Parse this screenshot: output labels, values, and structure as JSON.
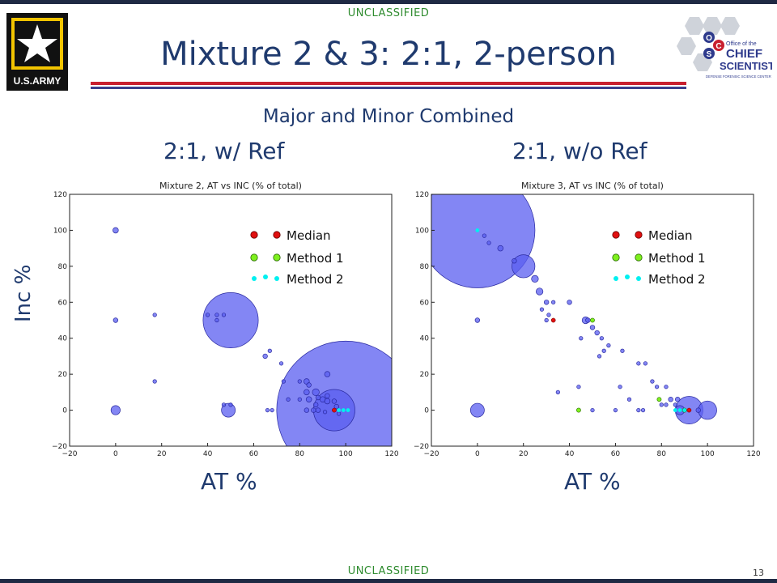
{
  "header": {
    "classification_top": "UNCLASSIFIED",
    "classification_bottom": "UNCLASSIFIED",
    "title": "Mixture 2 & 3:  2:1, 2-person",
    "army_logo_text": "U.S.ARMY",
    "ocs_logo_text": [
      "Office of the",
      "CHIEF",
      "SCIENTIST",
      "DEFENSE FORENSIC SCIENCE CENTER"
    ]
  },
  "slide": {
    "subtitle": "Major and Minor Combined",
    "left_heading": "2:1, w/ Ref",
    "right_heading": "2:1, w/o Ref",
    "y_axis_label": "Inc %",
    "x_axis_label_left": "AT %",
    "x_axis_label_right": "AT %",
    "page_number": "13"
  },
  "colors": {
    "bubble": "#5a5ef0",
    "median": "#e01010",
    "method1": "#7ef01e",
    "method2": "#00f0f0",
    "title_blue": "#1f3a6e",
    "rule_red": "#c8202f",
    "rule_blue": "#3b3f8c"
  },
  "chart_data": [
    {
      "type": "scatter",
      "title": "Mixture 2, AT vs INC (% of total)",
      "xlim": [
        -20,
        120
      ],
      "ylim": [
        -20,
        120
      ],
      "xticks": [
        -20,
        0,
        20,
        40,
        60,
        80,
        100,
        120
      ],
      "yticks": [
        -20,
        0,
        20,
        40,
        60,
        80,
        100,
        120
      ],
      "legend": {
        "placement": "upper-right",
        "entries": [
          "Median",
          "Method 1",
          "Method 2"
        ]
      },
      "bubbles": [
        {
          "x": 100,
          "y": 0,
          "r": 30
        },
        {
          "x": 95,
          "y": 0,
          "r": 9
        },
        {
          "x": 50,
          "y": 50,
          "r": 12
        },
        {
          "x": 49,
          "y": 0,
          "r": 3
        },
        {
          "x": 0,
          "y": 100,
          "r": 1.2
        },
        {
          "x": 0,
          "y": 50,
          "r": 1
        },
        {
          "x": 0,
          "y": 0,
          "r": 2
        },
        {
          "x": 17,
          "y": 53,
          "r": 0.8
        },
        {
          "x": 17,
          "y": 16,
          "r": 0.8
        },
        {
          "x": 40,
          "y": 53,
          "r": 0.8
        },
        {
          "x": 44,
          "y": 53,
          "r": 0.8
        },
        {
          "x": 47,
          "y": 53,
          "r": 0.8
        },
        {
          "x": 44,
          "y": 50,
          "r": 0.8
        },
        {
          "x": 65,
          "y": 30,
          "r": 1
        },
        {
          "x": 67,
          "y": 33,
          "r": 0.8
        },
        {
          "x": 72,
          "y": 26,
          "r": 0.8
        },
        {
          "x": 73,
          "y": 16,
          "r": 0.8
        },
        {
          "x": 80,
          "y": 16,
          "r": 0.8
        },
        {
          "x": 83,
          "y": 16,
          "r": 1.2
        },
        {
          "x": 84,
          "y": 14,
          "r": 1
        },
        {
          "x": 83,
          "y": 10,
          "r": 1.2
        },
        {
          "x": 87,
          "y": 10,
          "r": 1.5
        },
        {
          "x": 84,
          "y": 6,
          "r": 1.2
        },
        {
          "x": 88,
          "y": 7,
          "r": 1
        },
        {
          "x": 90,
          "y": 6,
          "r": 1.2
        },
        {
          "x": 92,
          "y": 5,
          "r": 1.2
        },
        {
          "x": 95,
          "y": 5,
          "r": 1
        },
        {
          "x": 96,
          "y": 2,
          "r": 1
        },
        {
          "x": 80,
          "y": 6,
          "r": 0.8
        },
        {
          "x": 75,
          "y": 6,
          "r": 0.8
        },
        {
          "x": 92,
          "y": 8,
          "r": 1
        },
        {
          "x": 87,
          "y": 3,
          "r": 1
        },
        {
          "x": 47,
          "y": 3,
          "r": 0.8
        },
        {
          "x": 50,
          "y": 3,
          "r": 0.8
        },
        {
          "x": 66,
          "y": 0,
          "r": 0.8
        },
        {
          "x": 68,
          "y": 0,
          "r": 0.8
        },
        {
          "x": 83,
          "y": 0,
          "r": 1
        },
        {
          "x": 86,
          "y": 0,
          "r": 1
        },
        {
          "x": 92,
          "y": 20,
          "r": 1.2
        },
        {
          "x": 88,
          "y": 0,
          "r": 1
        },
        {
          "x": 91,
          "y": -1,
          "r": 0.8
        },
        {
          "x": 97,
          "y": -2,
          "r": 0.8
        }
      ],
      "median": [
        {
          "x": 95,
          "y": 0
        }
      ],
      "method1": [],
      "method2": [
        {
          "x": 97,
          "y": 0
        },
        {
          "x": 99,
          "y": 0
        },
        {
          "x": 101,
          "y": 0
        }
      ]
    },
    {
      "type": "scatter",
      "title": "Mixture 3, AT vs INC (% of total)",
      "xlim": [
        -20,
        120
      ],
      "ylim": [
        -20,
        120
      ],
      "xticks": [
        -20,
        0,
        20,
        40,
        60,
        80,
        100,
        120
      ],
      "yticks": [
        -20,
        0,
        20,
        40,
        60,
        80,
        100,
        120
      ],
      "legend": {
        "placement": "upper-right",
        "entries": [
          "Median",
          "Method 1",
          "Method 2"
        ]
      },
      "bubbles": [
        {
          "x": 0,
          "y": 100,
          "r": 25
        },
        {
          "x": 20,
          "y": 80,
          "r": 5
        },
        {
          "x": 0,
          "y": 0,
          "r": 3
        },
        {
          "x": 92,
          "y": 0,
          "r": 6
        },
        {
          "x": 100,
          "y": 0,
          "r": 4
        },
        {
          "x": 88,
          "y": 0,
          "r": 2
        },
        {
          "x": 0,
          "y": 50,
          "r": 1
        },
        {
          "x": 3,
          "y": 97,
          "r": 0.8
        },
        {
          "x": 5,
          "y": 93,
          "r": 0.8
        },
        {
          "x": 10,
          "y": 90,
          "r": 1.2
        },
        {
          "x": 16,
          "y": 83,
          "r": 1
        },
        {
          "x": 25,
          "y": 73,
          "r": 1.5
        },
        {
          "x": 27,
          "y": 66,
          "r": 1.5
        },
        {
          "x": 30,
          "y": 60,
          "r": 1
        },
        {
          "x": 33,
          "y": 60,
          "r": 0.8
        },
        {
          "x": 28,
          "y": 56,
          "r": 0.8
        },
        {
          "x": 31,
          "y": 53,
          "r": 0.8
        },
        {
          "x": 30,
          "y": 50,
          "r": 0.8
        },
        {
          "x": 40,
          "y": 60,
          "r": 1
        },
        {
          "x": 47,
          "y": 50,
          "r": 1.5
        },
        {
          "x": 48,
          "y": 50,
          "r": 1
        },
        {
          "x": 50,
          "y": 46,
          "r": 1
        },
        {
          "x": 52,
          "y": 43,
          "r": 1
        },
        {
          "x": 54,
          "y": 40,
          "r": 0.8
        },
        {
          "x": 45,
          "y": 40,
          "r": 0.8
        },
        {
          "x": 55,
          "y": 33,
          "r": 0.8
        },
        {
          "x": 53,
          "y": 30,
          "r": 0.8
        },
        {
          "x": 57,
          "y": 36,
          "r": 0.8
        },
        {
          "x": 63,
          "y": 33,
          "r": 0.8
        },
        {
          "x": 70,
          "y": 26,
          "r": 0.8
        },
        {
          "x": 73,
          "y": 26,
          "r": 0.8
        },
        {
          "x": 76,
          "y": 16,
          "r": 0.8
        },
        {
          "x": 78,
          "y": 13,
          "r": 0.8
        },
        {
          "x": 82,
          "y": 13,
          "r": 0.8
        },
        {
          "x": 84,
          "y": 6,
          "r": 1
        },
        {
          "x": 87,
          "y": 6,
          "r": 1
        },
        {
          "x": 80,
          "y": 3,
          "r": 0.8
        },
        {
          "x": 82,
          "y": 3,
          "r": 0.8
        },
        {
          "x": 86,
          "y": 3,
          "r": 0.8
        },
        {
          "x": 66,
          "y": 6,
          "r": 0.8
        },
        {
          "x": 62,
          "y": 13,
          "r": 0.8
        },
        {
          "x": 44,
          "y": 13,
          "r": 0.8
        },
        {
          "x": 60,
          "y": 0,
          "r": 0.8
        },
        {
          "x": 70,
          "y": 0,
          "r": 0.8
        },
        {
          "x": 72,
          "y": 0,
          "r": 0.8
        },
        {
          "x": 50,
          "y": 0,
          "r": 0.8
        },
        {
          "x": 35,
          "y": 10,
          "r": 0.8
        },
        {
          "x": 96,
          "y": 0,
          "r": 1
        }
      ],
      "median": [
        {
          "x": 33,
          "y": 50
        },
        {
          "x": 92,
          "y": 0
        }
      ],
      "method1": [
        {
          "x": 50,
          "y": 50
        },
        {
          "x": 79,
          "y": 6
        },
        {
          "x": 44,
          "y": 0
        },
        {
          "x": 90,
          "y": 0
        }
      ],
      "method2": [
        {
          "x": 0,
          "y": 100
        },
        {
          "x": 86,
          "y": 0
        },
        {
          "x": 88,
          "y": 0
        },
        {
          "x": 90,
          "y": 0
        }
      ]
    }
  ]
}
